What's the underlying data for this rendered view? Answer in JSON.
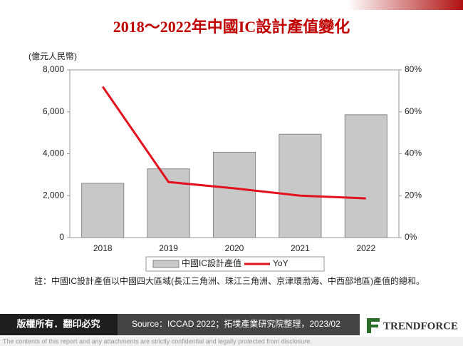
{
  "chart_data": {
    "type": "combo",
    "title": "2018～2022年中國IC設計產值變化",
    "ylabel": "(億元人民幣)",
    "categories": [
      "2018",
      "2019",
      "2020",
      "2021",
      "2022"
    ],
    "series": [
      {
        "name": "中國IC設計產值",
        "type": "bar",
        "color": "#c8c8c8",
        "values": [
          2590,
          3280,
          4070,
          4930,
          5860
        ]
      },
      {
        "name": "YoY",
        "type": "line",
        "axis": "y2",
        "color": "#e3101e",
        "values": [
          72,
          26.5,
          23.5,
          20,
          18.7
        ]
      }
    ],
    "ylim": [
      0,
      8000
    ],
    "yticks": [
      0,
      {
        "value": 2000,
        "label": "2,000"
      },
      {
        "value": 4000,
        "label": "4,000"
      },
      {
        "value": 6000,
        "label": "6,000"
      },
      {
        "value": 8000,
        "label": "8,000"
      }
    ],
    "y2lim": [
      0,
      80
    ],
    "y2ticks": [
      {
        "value": 0,
        "label": "0%"
      },
      {
        "value": 20,
        "label": "20%"
      },
      {
        "value": 40,
        "label": "40%"
      },
      {
        "value": 60,
        "label": "60%"
      },
      {
        "value": 80,
        "label": "80%"
      }
    ],
    "legend": "bottom",
    "note": "註：中國IC設計產值以中國四大區域(長江三角洲、珠江三角洲、京津環渤海、中西部地區)產值的總和。",
    "copyright": "版權所有．翻印必究",
    "source": "Source：ICCAD 2022；拓墣產業研究院整理，2023/02",
    "logo": "TRENDFORCE",
    "disclaimer": "The contents of this report and any attachments are strictly confidential and legally protected from disclosure."
  }
}
